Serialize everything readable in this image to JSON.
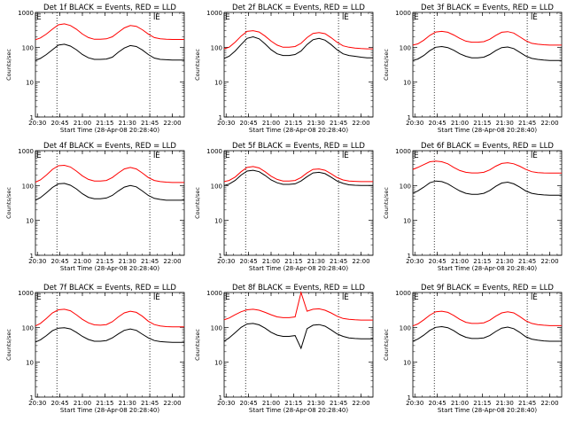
{
  "chart_data": {
    "type": "line",
    "panel_grid": "3x3",
    "ylabel": "Counts/sec",
    "xlabel": "Start Time (28-Apr-08 20:28:40)",
    "x_ticks": [
      "20:30",
      "20:45",
      "21:00",
      "21:15",
      "21:30",
      "21:45",
      "22:00"
    ],
    "x_range": [
      "20:28:40",
      "22:08:00"
    ],
    "y_scale": "log",
    "y_range": [
      1,
      1000
    ],
    "y_ticks": [
      "1",
      "10",
      "100",
      "1000"
    ],
    "marker_letter": "E",
    "event_marker_times": [
      "20:28:40",
      "21:48:00"
    ],
    "dotted_line_times": [
      "20:43:00",
      "21:45:00"
    ],
    "series_colors": {
      "events": "#000000",
      "lld": "#ff0000"
    },
    "time_samples": [
      "20:28:40",
      "20:32:00",
      "20:36:00",
      "20:40:00",
      "20:44:00",
      "20:48:00",
      "20:52:00",
      "20:56:00",
      "21:00:00",
      "21:04:00",
      "21:08:00",
      "21:12:00",
      "21:16:00",
      "21:20:00",
      "21:24:00",
      "21:28:00",
      "21:32:00",
      "21:36:00",
      "21:40:00",
      "21:44:00",
      "21:48:00",
      "21:52:00",
      "21:56:00",
      "22:00:00",
      "22:04:00",
      "22:08:00"
    ],
    "panels": [
      {
        "title": "Det 1f BLACK = Events, RED = LLD",
        "series": [
          {
            "key": "lld",
            "values": [
              165,
              185,
              240,
              330,
              440,
              470,
              420,
              330,
              240,
              190,
              170,
              170,
              175,
              200,
              270,
              360,
              420,
              400,
              320,
              240,
              190,
              175,
              170,
              168,
              168,
              168
            ]
          },
          {
            "key": "events",
            "values": [
              42,
              48,
              62,
              85,
              115,
              122,
              108,
              85,
              62,
              50,
              45,
              45,
              46,
              52,
              72,
              95,
              112,
              105,
              84,
              62,
              49,
              45,
              44,
              43,
              43,
              43
            ]
          }
        ]
      },
      {
        "title": "Det 2f BLACK = Events, RED = LLD",
        "series": [
          {
            "key": "lld",
            "values": [
              90,
              100,
              140,
              210,
              285,
              300,
              275,
              210,
              150,
              115,
              100,
              100,
              105,
              130,
              190,
              250,
              265,
              245,
              190,
              140,
              110,
              100,
              95,
              92,
              90,
              90
            ]
          },
          {
            "key": "events",
            "values": [
              48,
              55,
              78,
              120,
              180,
              200,
              175,
              125,
              85,
              65,
              58,
              58,
              62,
              78,
              120,
              165,
              180,
              160,
              120,
              85,
              65,
              58,
              55,
              52,
              50,
              50
            ]
          }
        ]
      },
      {
        "title": "Det 3f BLACK = Events, RED = LLD",
        "series": [
          {
            "key": "lld",
            "values": [
              115,
              125,
              160,
              220,
              275,
              285,
              270,
              225,
              180,
              150,
              140,
              140,
              145,
              170,
              220,
              270,
              280,
              255,
              200,
              155,
              130,
              122,
              118,
              115,
              115,
              115
            ]
          },
          {
            "key": "events",
            "values": [
              42,
              46,
              58,
              80,
              100,
              105,
              98,
              82,
              65,
              55,
              50,
              50,
              52,
              62,
              80,
              98,
              102,
              92,
              72,
              56,
              48,
              45,
              43,
              42,
              42,
              42
            ]
          }
        ]
      },
      {
        "title": "Det 4f BLACK = Events, RED = LLD",
        "series": [
          {
            "key": "lld",
            "values": [
              125,
              145,
              200,
              290,
              370,
              380,
              340,
              260,
              190,
              150,
              135,
              135,
              140,
              170,
              230,
              300,
              330,
              300,
              230,
              170,
              140,
              130,
              125,
              122,
              122,
              122
            ]
          },
          {
            "key": "events",
            "values": [
              38,
              45,
              62,
              88,
              112,
              115,
              102,
              80,
              58,
              46,
              42,
              42,
              44,
              52,
              70,
              90,
              100,
              92,
              70,
              52,
              43,
              40,
              38,
              38,
              38,
              38
            ]
          }
        ]
      },
      {
        "title": "Det 5f BLACK = Events, RED = LLD",
        "series": [
          {
            "key": "lld",
            "values": [
              130,
              140,
              175,
              250,
              330,
              350,
              320,
              250,
              185,
              150,
              135,
              135,
              140,
              170,
              230,
              290,
              300,
              275,
              220,
              170,
              145,
              135,
              132,
              130,
              130,
              130
            ]
          },
          {
            "key": "events",
            "values": [
              100,
              110,
              140,
              200,
              260,
              275,
              250,
              195,
              145,
              120,
              108,
              108,
              112,
              135,
              180,
              230,
              240,
              220,
              175,
              135,
              115,
              105,
              102,
              100,
              100,
              100
            ]
          }
        ]
      },
      {
        "title": "Det 6f BLACK = Events, RED = LLD",
        "series": [
          {
            "key": "lld",
            "values": [
              290,
              330,
              400,
              480,
              500,
              480,
              420,
              330,
              270,
              240,
              230,
              230,
              240,
              280,
              360,
              430,
              450,
              420,
              360,
              290,
              250,
              235,
              230,
              228,
              228,
              228
            ]
          },
          {
            "key": "events",
            "values": [
              60,
              70,
              90,
              120,
              135,
              130,
              112,
              88,
              70,
              60,
              56,
              56,
              60,
              72,
              95,
              118,
              125,
              112,
              90,
              70,
              60,
              56,
              54,
              53,
              53,
              53
            ]
          }
        ]
      },
      {
        "title": "Det 7f BLACK = Events, RED = LLD",
        "series": [
          {
            "key": "lld",
            "values": [
              110,
              130,
              180,
              260,
              320,
              330,
              300,
              230,
              170,
              135,
              118,
              115,
              120,
              145,
              200,
              260,
              290,
              270,
              210,
              150,
              120,
              110,
              105,
              103,
              103,
              103
            ]
          },
          {
            "key": "events",
            "values": [
              38,
              44,
              58,
              80,
              95,
              98,
              90,
              72,
              55,
              45,
              40,
              40,
              42,
              50,
              65,
              82,
              90,
              82,
              64,
              50,
              42,
              39,
              38,
              37,
              37,
              37
            ]
          }
        ]
      },
      {
        "title": "Det 8f BLACK = Events, RED = LLD",
        "series": [
          {
            "key": "lld",
            "values": [
              165,
              185,
              230,
              280,
              320,
              330,
              310,
              270,
              230,
              200,
              190,
              190,
              200,
              1000,
              290,
              330,
              340,
              310,
              260,
              210,
              180,
              170,
              165,
              162,
              162,
              162
            ]
          },
          {
            "key": "events",
            "values": [
              40,
              50,
              70,
              100,
              125,
              130,
              118,
              95,
              72,
              60,
              55,
              55,
              58,
              25,
              92,
              115,
              120,
              108,
              85,
              65,
              55,
              50,
              48,
              47,
              47,
              47
            ]
          }
        ]
      },
      {
        "title": "Det 9f BLACK = Events, RED = LLD",
        "series": [
          {
            "key": "lld",
            "values": [
              110,
              125,
              165,
              225,
              280,
              290,
              270,
              220,
              170,
              140,
              130,
              130,
              135,
              160,
              210,
              260,
              280,
              260,
              205,
              155,
              130,
              120,
              115,
              112,
              112,
              112
            ]
          },
          {
            "key": "events",
            "values": [
              40,
              46,
              60,
              82,
              100,
              105,
              98,
              80,
              62,
              52,
              48,
              48,
              50,
              58,
              76,
              95,
              102,
              92,
              72,
              54,
              46,
              43,
              41,
              40,
              40,
              40
            ]
          }
        ]
      }
    ]
  }
}
